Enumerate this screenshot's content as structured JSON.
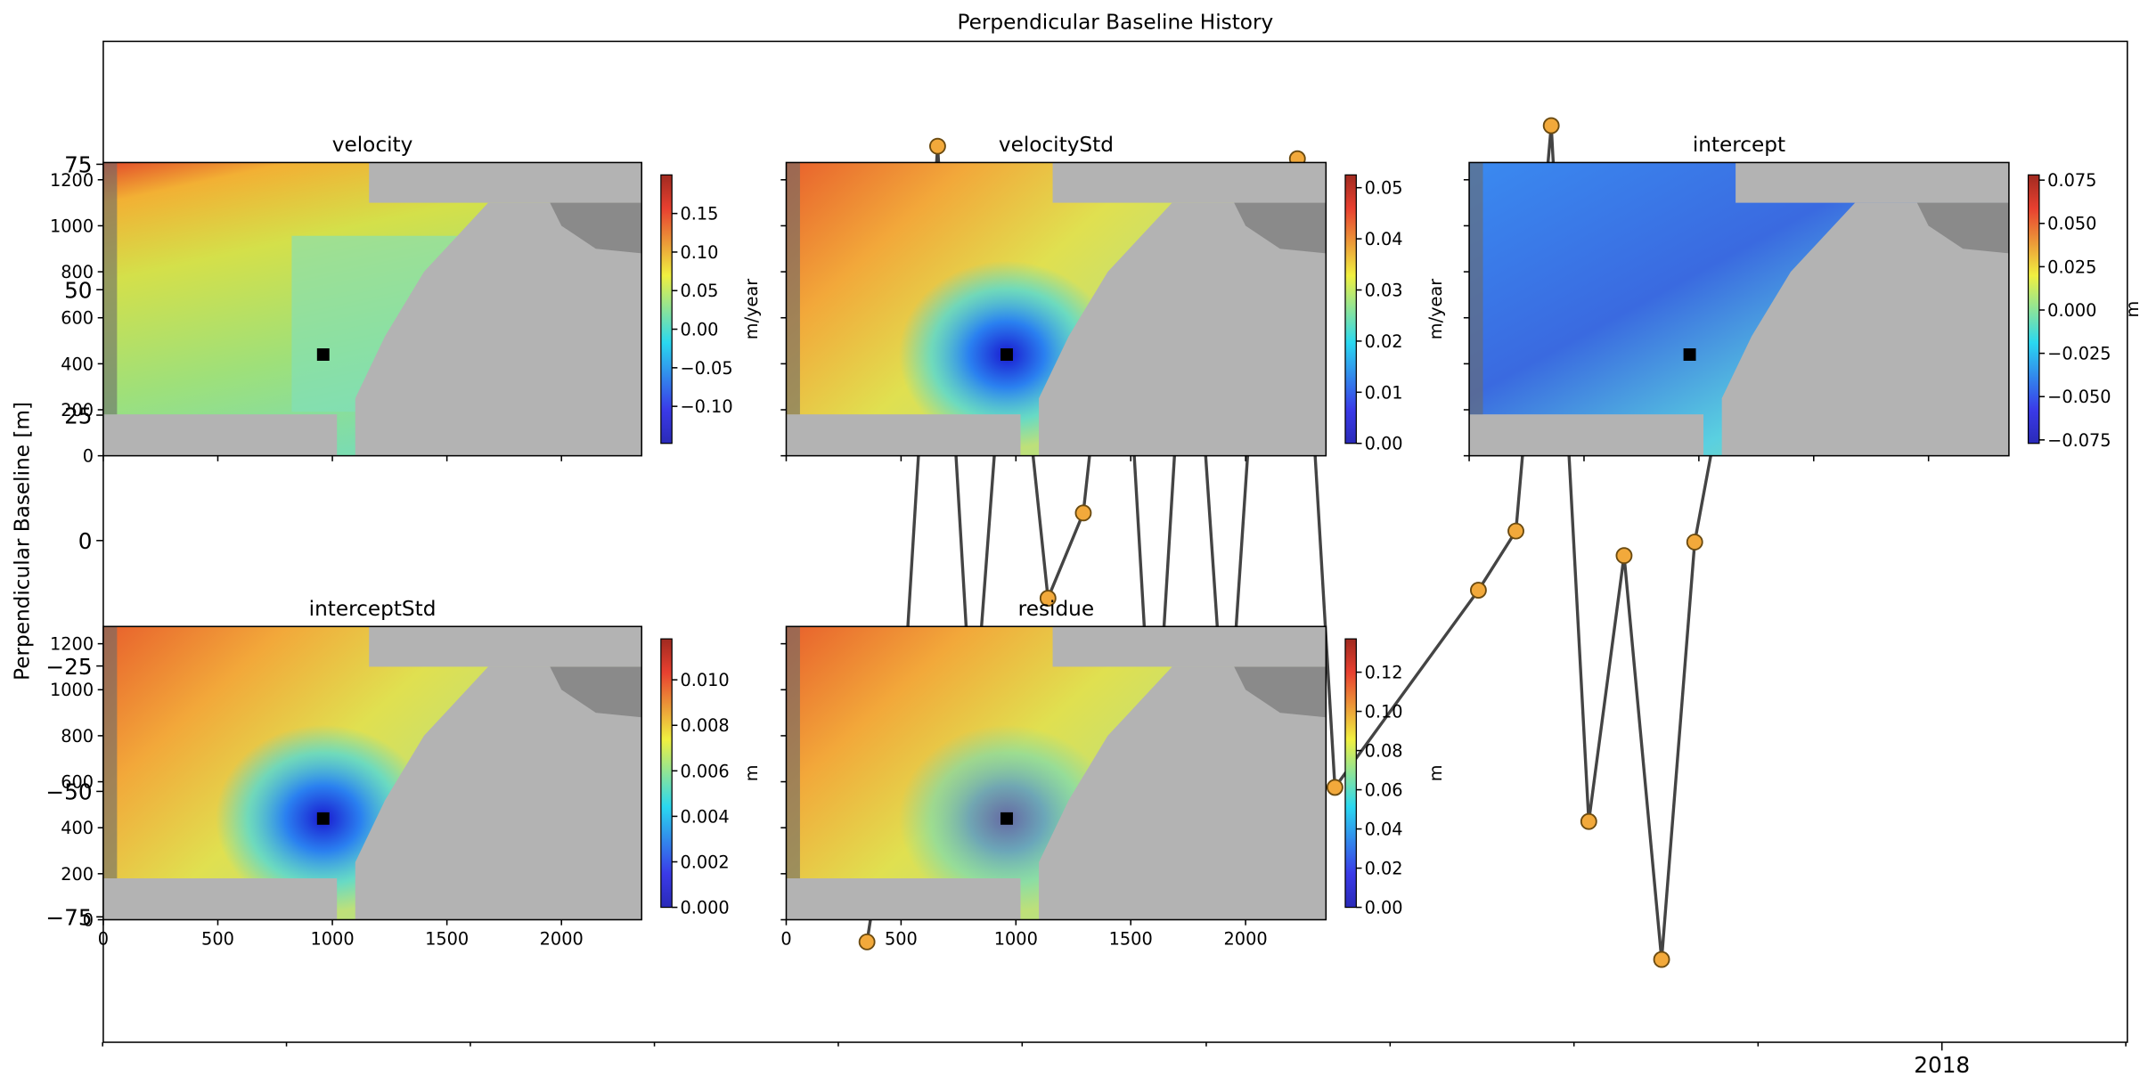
{
  "chart_data": [
    {
      "type": "line",
      "title": "Perpendicular Baseline History",
      "y_label": "Perpendicular Baseline [m]",
      "x": [
        2017.513,
        2017.529,
        2017.545,
        2017.561,
        2017.578,
        2017.595,
        2017.611,
        2017.627,
        2017.643,
        2017.659,
        2017.676,
        2017.692,
        2017.708,
        2017.725,
        2017.79,
        2017.807,
        2017.823,
        2017.84,
        2017.856,
        2017.873,
        2017.888,
        2017.905
      ],
      "values": [
        -80,
        -35,
        78.6,
        -40,
        60,
        -11.5,
        5.5,
        70,
        -50,
        65,
        -45,
        60,
        76.1,
        -49.2,
        -9.9,
        1.9,
        82.7,
        -56,
        -3,
        -83.5,
        -0.3,
        40
      ],
      "marker_color": "#f2a93b",
      "line_color": "#444444",
      "xlim": [
        2017.167,
        2018.084
      ],
      "xticks": [
        2018
      ],
      "xminorticks": [
        2017.1667,
        2017.25,
        2017.3333,
        2017.4167,
        2017.5,
        2017.5833,
        2017.6667,
        2017.75,
        2017.8333,
        2017.9167,
        2018.0833
      ],
      "ylim": [
        -100,
        99.5
      ],
      "yticks": [
        {
          "value": -75,
          "label": "−75"
        },
        {
          "value": -50,
          "label": "−50"
        },
        {
          "value": -25,
          "label": "−25"
        },
        0,
        25,
        50,
        75
      ]
    },
    {
      "type": "image",
      "title": "velocity",
      "xlim": [
        0,
        2350
      ],
      "ylim": [
        0,
        1275
      ],
      "xticks": [
        0,
        500,
        1000,
        1500,
        2000
      ],
      "yticks": [
        0,
        200,
        400,
        600,
        800,
        1000,
        1200
      ],
      "xtick_labels": false,
      "ytick_labels": true,
      "colorbar": {
        "label": "m/year",
        "clim": [
          -0.148,
          0.2
        ],
        "ticks": [
          {
            "value": -0.1,
            "label": "−0.10"
          },
          {
            "value": -0.05,
            "label": "−0.05"
          },
          {
            "value": 0,
            "label": "0.00"
          },
          0.05,
          {
            "value": 0.1,
            "label": "0.10"
          },
          0.15
        ]
      }
    },
    {
      "type": "image",
      "title": "velocityStd",
      "xlim": [
        0,
        2350
      ],
      "ylim": [
        0,
        1275
      ],
      "xticks": [
        0,
        500,
        1000,
        1500,
        2000
      ],
      "yticks": [
        0,
        200,
        400,
        600,
        800,
        1000,
        1200
      ],
      "xtick_labels": false,
      "ytick_labels": false,
      "colorbar": {
        "label": "m/year",
        "clim": [
          0,
          0.0525
        ],
        "ticks": [
          {
            "value": 0,
            "label": "0.00"
          },
          0.01,
          0.02,
          0.03,
          0.04,
          0.05
        ]
      }
    },
    {
      "type": "image",
      "title": "intercept",
      "xlim": [
        0,
        2350
      ],
      "ylim": [
        0,
        1275
      ],
      "xticks": [
        0,
        500,
        1000,
        1500,
        2000
      ],
      "yticks": [
        0,
        200,
        400,
        600,
        800,
        1000,
        1200
      ],
      "xtick_labels": false,
      "ytick_labels": false,
      "colorbar": {
        "label": "m",
        "clim": [
          -0.077,
          0.078
        ],
        "ticks": [
          {
            "value": -0.075,
            "label": "−0.075"
          },
          {
            "value": -0.05,
            "label": "−0.050"
          },
          {
            "value": -0.025,
            "label": "−0.025"
          },
          {
            "value": 0,
            "label": "0.000"
          },
          0.025,
          {
            "value": 0.05,
            "label": "0.050"
          },
          0.075
        ]
      }
    },
    {
      "type": "image",
      "title": "interceptStd",
      "xlim": [
        0,
        2350
      ],
      "ylim": [
        0,
        1275
      ],
      "xticks": [
        0,
        500,
        1000,
        1500,
        2000
      ],
      "yticks": [
        0,
        200,
        400,
        600,
        800,
        1000,
        1200
      ],
      "xtick_labels": true,
      "ytick_labels": true,
      "colorbar": {
        "label": "m",
        "clim": [
          0,
          0.0118
        ],
        "ticks": [
          {
            "value": 0,
            "label": "0.000"
          },
          0.002,
          0.004,
          0.006,
          0.008,
          {
            "value": 0.01,
            "label": "0.010"
          }
        ]
      }
    },
    {
      "type": "image",
      "title": "residue",
      "xlim": [
        0,
        2350
      ],
      "ylim": [
        0,
        1275
      ],
      "xticks": [
        0,
        500,
        1000,
        1500,
        2000
      ],
      "yticks": [
        0,
        200,
        400,
        600,
        800,
        1000,
        1200
      ],
      "xtick_labels": true,
      "ytick_labels": false,
      "colorbar": {
        "label": "m",
        "clim": [
          0,
          0.137
        ],
        "ticks": [
          {
            "value": 0,
            "label": "0.00"
          },
          0.02,
          0.04,
          0.06,
          0.08,
          {
            "value": 0.1,
            "label": "0.10"
          },
          0.12
        ]
      }
    }
  ]
}
